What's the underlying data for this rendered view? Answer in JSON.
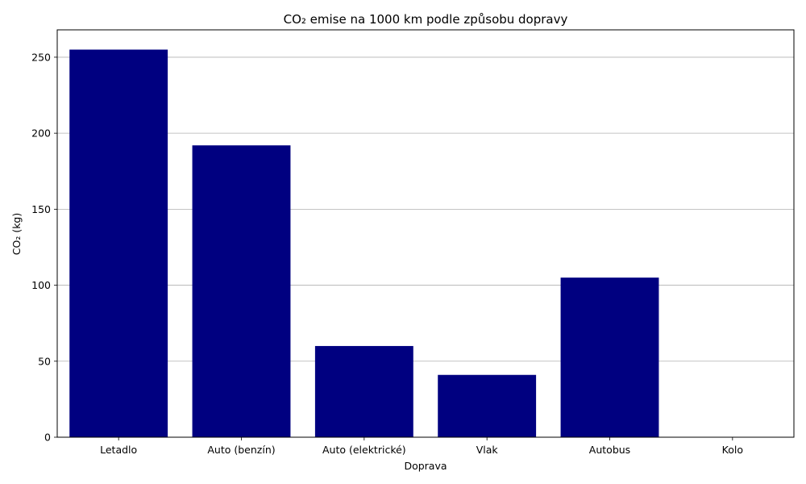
{
  "chart_data": {
    "type": "bar",
    "title": "CO₂ emise na 1000 km podle způsobu dopravy",
    "xlabel": "Doprava",
    "ylabel": "CO₂ (kg)",
    "categories": [
      "Letadlo",
      "Auto (benzín)",
      "Auto (elektrické)",
      "Vlak",
      "Autobus",
      "Kolo"
    ],
    "values": [
      255,
      192,
      60,
      41,
      105,
      0
    ],
    "ylim": [
      0,
      268
    ],
    "yticks": [
      0,
      50,
      100,
      150,
      200,
      250
    ],
    "grid": "y",
    "bar_color": "#000080"
  }
}
